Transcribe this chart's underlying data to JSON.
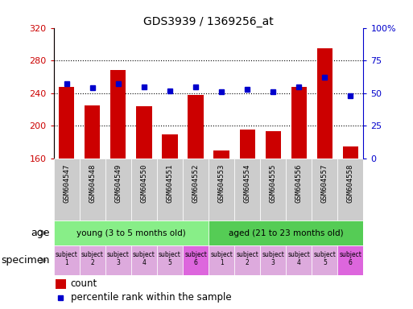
{
  "title": "GDS3939 / 1369256_at",
  "samples": [
    "GSM604547",
    "GSM604548",
    "GSM604549",
    "GSM604550",
    "GSM604551",
    "GSM604552",
    "GSM604553",
    "GSM604554",
    "GSM604555",
    "GSM604556",
    "GSM604557",
    "GSM604558"
  ],
  "counts": [
    248,
    225,
    268,
    224,
    190,
    238,
    170,
    195,
    193,
    248,
    295,
    175
  ],
  "percentiles": [
    57,
    54,
    57,
    55,
    52,
    55,
    51,
    53,
    51,
    55,
    62,
    48
  ],
  "ylim_left": [
    160,
    320
  ],
  "ylim_right": [
    0,
    100
  ],
  "yticks_left": [
    160,
    200,
    240,
    280,
    320
  ],
  "yticks_right": [
    0,
    25,
    50,
    75,
    100
  ],
  "bar_color": "#cc0000",
  "dot_color": "#0000cc",
  "age_groups": [
    {
      "label": "young (3 to 5 months old)",
      "start": 0,
      "end": 6,
      "color": "#88ee88"
    },
    {
      "label": "aged (21 to 23 months old)",
      "start": 6,
      "end": 12,
      "color": "#55cc55"
    }
  ],
  "specimen_colors_light": "#ddaadd",
  "specimen_colors_dark": "#dd66dd",
  "subject_labels": [
    "subject\n1",
    "subject\n2",
    "subject\n3",
    "subject\n4",
    "subject\n5",
    "subject\n6",
    "subject\n1",
    "subject\n2",
    "subject\n3",
    "subject\n4",
    "subject\n5",
    "subject\n6"
  ],
  "subject_dark_indices": [
    5,
    11
  ],
  "sample_bg_color": "#cccccc",
  "legend_count_color": "#cc0000",
  "legend_pct_color": "#0000cc",
  "grid_color": "#000000",
  "left_axis_color": "#cc0000",
  "right_axis_color": "#0000cc",
  "grid_yticks": [
    200,
    240,
    280
  ]
}
